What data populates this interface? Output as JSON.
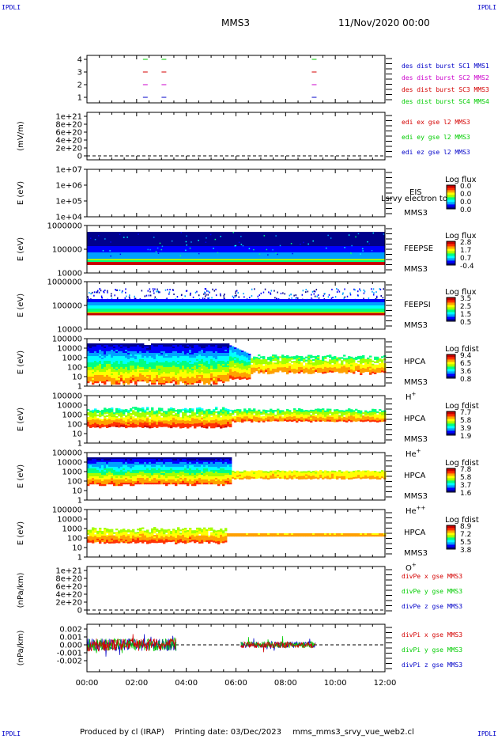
{
  "header": {
    "title": "MMS3",
    "datetime": "11/Nov/2020 00:00",
    "corner_left": "IPDLI",
    "corner_right": "IPDLI"
  },
  "footer": {
    "produced_by": "Produced by cl (IRAP)",
    "printing_date": "Printing date: 03/Dec/2023",
    "script": "mms_mms3_srvy_vue_web2.cl"
  },
  "colors": {
    "red": "#d40000",
    "green": "#00cc00",
    "blue": "#0000c8",
    "magenta": "#cc00cc"
  },
  "colorbar_colors": [
    "#00008c",
    "#0000ff",
    "#00a0ff",
    "#00ffff",
    "#00ff80",
    "#a0ff00",
    "#ffff00",
    "#ffa000",
    "#ff3000",
    "#c80000"
  ],
  "chart_data": [
    {
      "type": "scatter",
      "id": "p1",
      "ylim": [
        0.5,
        4.5
      ],
      "yticks": [
        "1",
        "2",
        "3",
        "4"
      ],
      "series": [
        {
          "name": "des dist burst SC1 MMS1",
          "color": "#0000c8",
          "y": 1,
          "x": [
            2.35,
            3.1,
            9.15
          ]
        },
        {
          "name": "des dist burst SC2 MMS2",
          "color": "#cc00cc",
          "y": 2,
          "x": [
            2.35,
            3.1,
            9.15
          ]
        },
        {
          "name": "des dist burst SC3 MMS3",
          "color": "#d40000",
          "y": 3,
          "x": [
            2.35,
            3.1,
            9.15
          ]
        },
        {
          "name": "des dist burst SC4 MMS4",
          "color": "#00cc00",
          "y": 4,
          "x": [
            2.35,
            3.1,
            9.15
          ]
        }
      ]
    },
    {
      "type": "line",
      "id": "p2",
      "ylabel": "(mV/m)",
      "yticks": [
        "1e+21",
        "8e+20",
        "6e+20",
        "4e+20",
        "2e+20",
        "0"
      ],
      "series": [
        {
          "name": "edi ex gse l2 MMS3",
          "color": "#d40000"
        },
        {
          "name": "edi ey gse l2 MMS3",
          "color": "#00cc00"
        },
        {
          "name": "edi ez gse l2 MMS3",
          "color": "#0000c8"
        }
      ]
    },
    {
      "type": "heatmap",
      "id": "p3",
      "ylabel": "E (eV)",
      "yticks": [
        "1e+07",
        "1e+06",
        "1e+05",
        "1e+04"
      ],
      "instrument": "EIS",
      "spacecraft": "MMS3",
      "extra": "Lsrvy electron to",
      "cbar_title": "Log flux",
      "cbar_ticks": [
        "0.0",
        "0.0",
        "0.0",
        "0.0"
      ]
    },
    {
      "type": "heatmap",
      "id": "p4",
      "ylabel": "E (eV)",
      "yticks": [
        "1000000",
        "100000",
        "10000"
      ],
      "instrument": "FEEPSE",
      "spacecraft": "MMS3",
      "cbar_title": "Log flux",
      "cbar_ticks": [
        "2.8",
        "1.7",
        "0.7",
        "-0.4"
      ]
    },
    {
      "type": "heatmap",
      "id": "p5",
      "ylabel": "E (eV)",
      "yticks": [
        "1000000",
        "100000",
        "10000"
      ],
      "instrument": "FEEPSI",
      "spacecraft": "MMS3",
      "cbar_title": "Log flux",
      "cbar_ticks": [
        "3.5",
        "2.5",
        "1.5",
        "0.5"
      ]
    },
    {
      "type": "heatmap",
      "id": "p6",
      "ylabel": "E (eV)",
      "yticks": [
        "100000",
        "10000",
        "1000",
        "100",
        "10",
        "1"
      ],
      "instrument": "HPCA",
      "spacecraft": "MMS3",
      "ion": "H",
      "ion_sup": "+",
      "cbar_title": "Log fdist",
      "cbar_ticks": [
        "9.4",
        "6.5",
        "3.6",
        "0.8"
      ]
    },
    {
      "type": "heatmap",
      "id": "p7",
      "ylabel": "E (eV)",
      "yticks": [
        "100000",
        "10000",
        "1000",
        "100",
        "10",
        "1"
      ],
      "instrument": "HPCA",
      "spacecraft": "MMS3",
      "ion": "He",
      "ion_sup": "+",
      "cbar_title": "Log fdist",
      "cbar_ticks": [
        "7.7",
        "5.8",
        "3.9",
        "1.9"
      ]
    },
    {
      "type": "heatmap",
      "id": "p8",
      "ylabel": "E (eV)",
      "yticks": [
        "100000",
        "10000",
        "1000",
        "100",
        "10",
        "1"
      ],
      "instrument": "HPCA",
      "spacecraft": "MMS3",
      "ion": "He",
      "ion_sup": "++",
      "cbar_title": "Log fdist",
      "cbar_ticks": [
        "7.8",
        "5.8",
        "3.7",
        "1.6"
      ]
    },
    {
      "type": "heatmap",
      "id": "p9",
      "ylabel": "E (eV)",
      "yticks": [
        "100000",
        "10000",
        "1000",
        "100",
        "10",
        "1"
      ],
      "instrument": "HPCA",
      "spacecraft": "MMS3",
      "ion": "O",
      "ion_sup": "+",
      "cbar_title": "Log fdist",
      "cbar_ticks": [
        "8.9",
        "7.2",
        "5.5",
        "3.8"
      ]
    },
    {
      "type": "line",
      "id": "p10",
      "ylabel": "(nPa/km)",
      "yticks": [
        "1e+21",
        "8e+20",
        "6e+20",
        "4e+20",
        "2e+20",
        "0"
      ],
      "series": [
        {
          "name": "divPe x gse MMS3",
          "color": "#d40000"
        },
        {
          "name": "divPe y gse MMS3",
          "color": "#00cc00"
        },
        {
          "name": "divPe z gse MMS3",
          "color": "#0000c8"
        }
      ]
    },
    {
      "type": "line",
      "id": "p11",
      "ylabel": "(nPa/km)",
      "ylim": [
        -0.003,
        0.003
      ],
      "yticks": [
        "0.002",
        "0.001",
        "0.000",
        "-0.001",
        "-0.002"
      ],
      "data_intervals_hours": [
        [
          0.0,
          3.6
        ],
        [
          6.2,
          9.2
        ]
      ],
      "series": [
        {
          "name": "divPi x gse MMS3",
          "color": "#d40000"
        },
        {
          "name": "divPi y gse MMS3",
          "color": "#00cc00"
        },
        {
          "name": "divPi z gse MMS3",
          "color": "#0000c8"
        }
      ]
    }
  ],
  "xaxis": {
    "range_hours": [
      0,
      12
    ],
    "tick_labels": [
      "00:00",
      "02:00",
      "04:00",
      "06:00",
      "08:00",
      "10:00",
      "12:00"
    ]
  }
}
